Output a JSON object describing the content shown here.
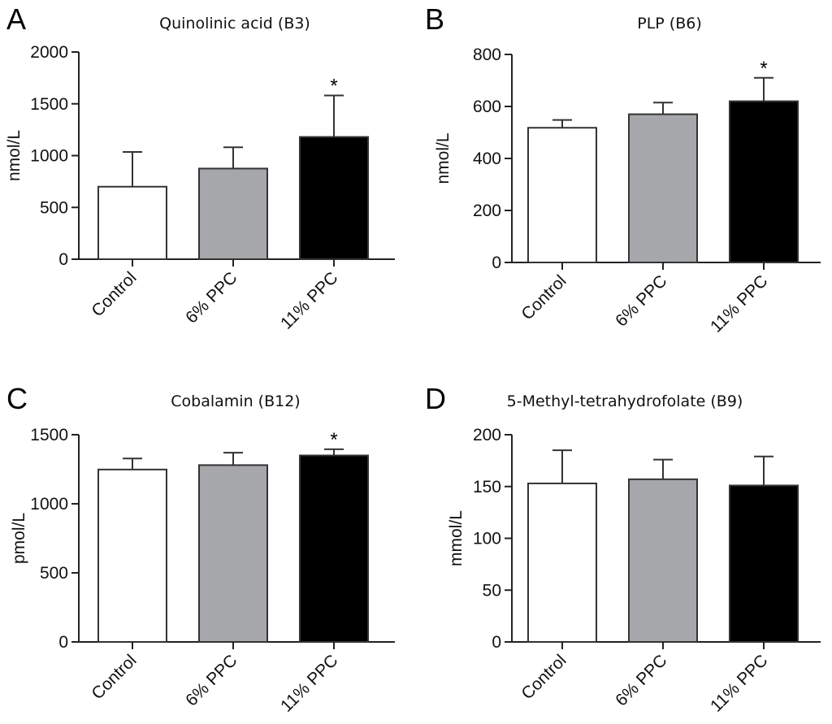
{
  "colors": {
    "control": "#ffffff",
    "ppc6": "#a6a7aa",
    "ppc11": "#000000",
    "axis": "#222222",
    "bar_stroke": "#333333"
  },
  "chart_data": [
    {
      "panel": "A",
      "type": "bar",
      "title": "Quinolinic acid (B3)",
      "xlabel": "",
      "ylabel": "nmol/L",
      "ylim": [
        0,
        2000
      ],
      "yticks": [
        0,
        500,
        1000,
        1500,
        2000
      ],
      "ytick_labels": [
        "0",
        "500",
        "1000",
        "1500",
        "2000"
      ],
      "categories": [
        "Control",
        "6% PPC",
        "11% PPC"
      ],
      "values": [
        700,
        875,
        1180
      ],
      "errors": [
        335,
        205,
        400
      ],
      "significance": [
        "",
        "",
        "*"
      ],
      "grid": false
    },
    {
      "panel": "B",
      "type": "bar",
      "title": "PLP (B6)",
      "xlabel": "",
      "ylabel": "nmol/L",
      "ylim": [
        0,
        800
      ],
      "yticks": [
        0,
        200,
        400,
        600,
        800
      ],
      "ytick_labels": [
        "0",
        "200",
        "400",
        "600",
        "800"
      ],
      "categories": [
        "Control",
        "6% PPC",
        "11% PPC"
      ],
      "values": [
        518,
        570,
        620
      ],
      "errors": [
        30,
        45,
        90
      ],
      "significance": [
        "",
        "",
        "*"
      ],
      "grid": false
    },
    {
      "panel": "C",
      "type": "bar",
      "title": "Cobalamin (B12)",
      "xlabel": "",
      "ylabel": "pmol/L",
      "ylim": [
        0,
        1500
      ],
      "yticks": [
        0,
        500,
        1000,
        1500
      ],
      "ytick_labels": [
        "0",
        "500",
        "1000",
        "1500"
      ],
      "categories": [
        "Control",
        "6% PPC",
        "11% PPC"
      ],
      "values": [
        1248,
        1280,
        1350
      ],
      "errors": [
        80,
        90,
        45
      ],
      "significance": [
        "",
        "",
        "*"
      ],
      "grid": false
    },
    {
      "panel": "D",
      "type": "bar",
      "title": "5-Methyl-tetrahydrofolate (B9)",
      "xlabel": "",
      "ylabel": "mmol/L",
      "ylim": [
        0,
        200
      ],
      "yticks": [
        0,
        50,
        100,
        150,
        200
      ],
      "ytick_labels": [
        "0",
        "50",
        "100",
        "150",
        "200"
      ],
      "categories": [
        "Control",
        "6% PPC",
        "11% PPC"
      ],
      "values": [
        153,
        157,
        151
      ],
      "errors": [
        32,
        19,
        28
      ],
      "significance": [
        "",
        "",
        ""
      ],
      "grid": false
    }
  ]
}
